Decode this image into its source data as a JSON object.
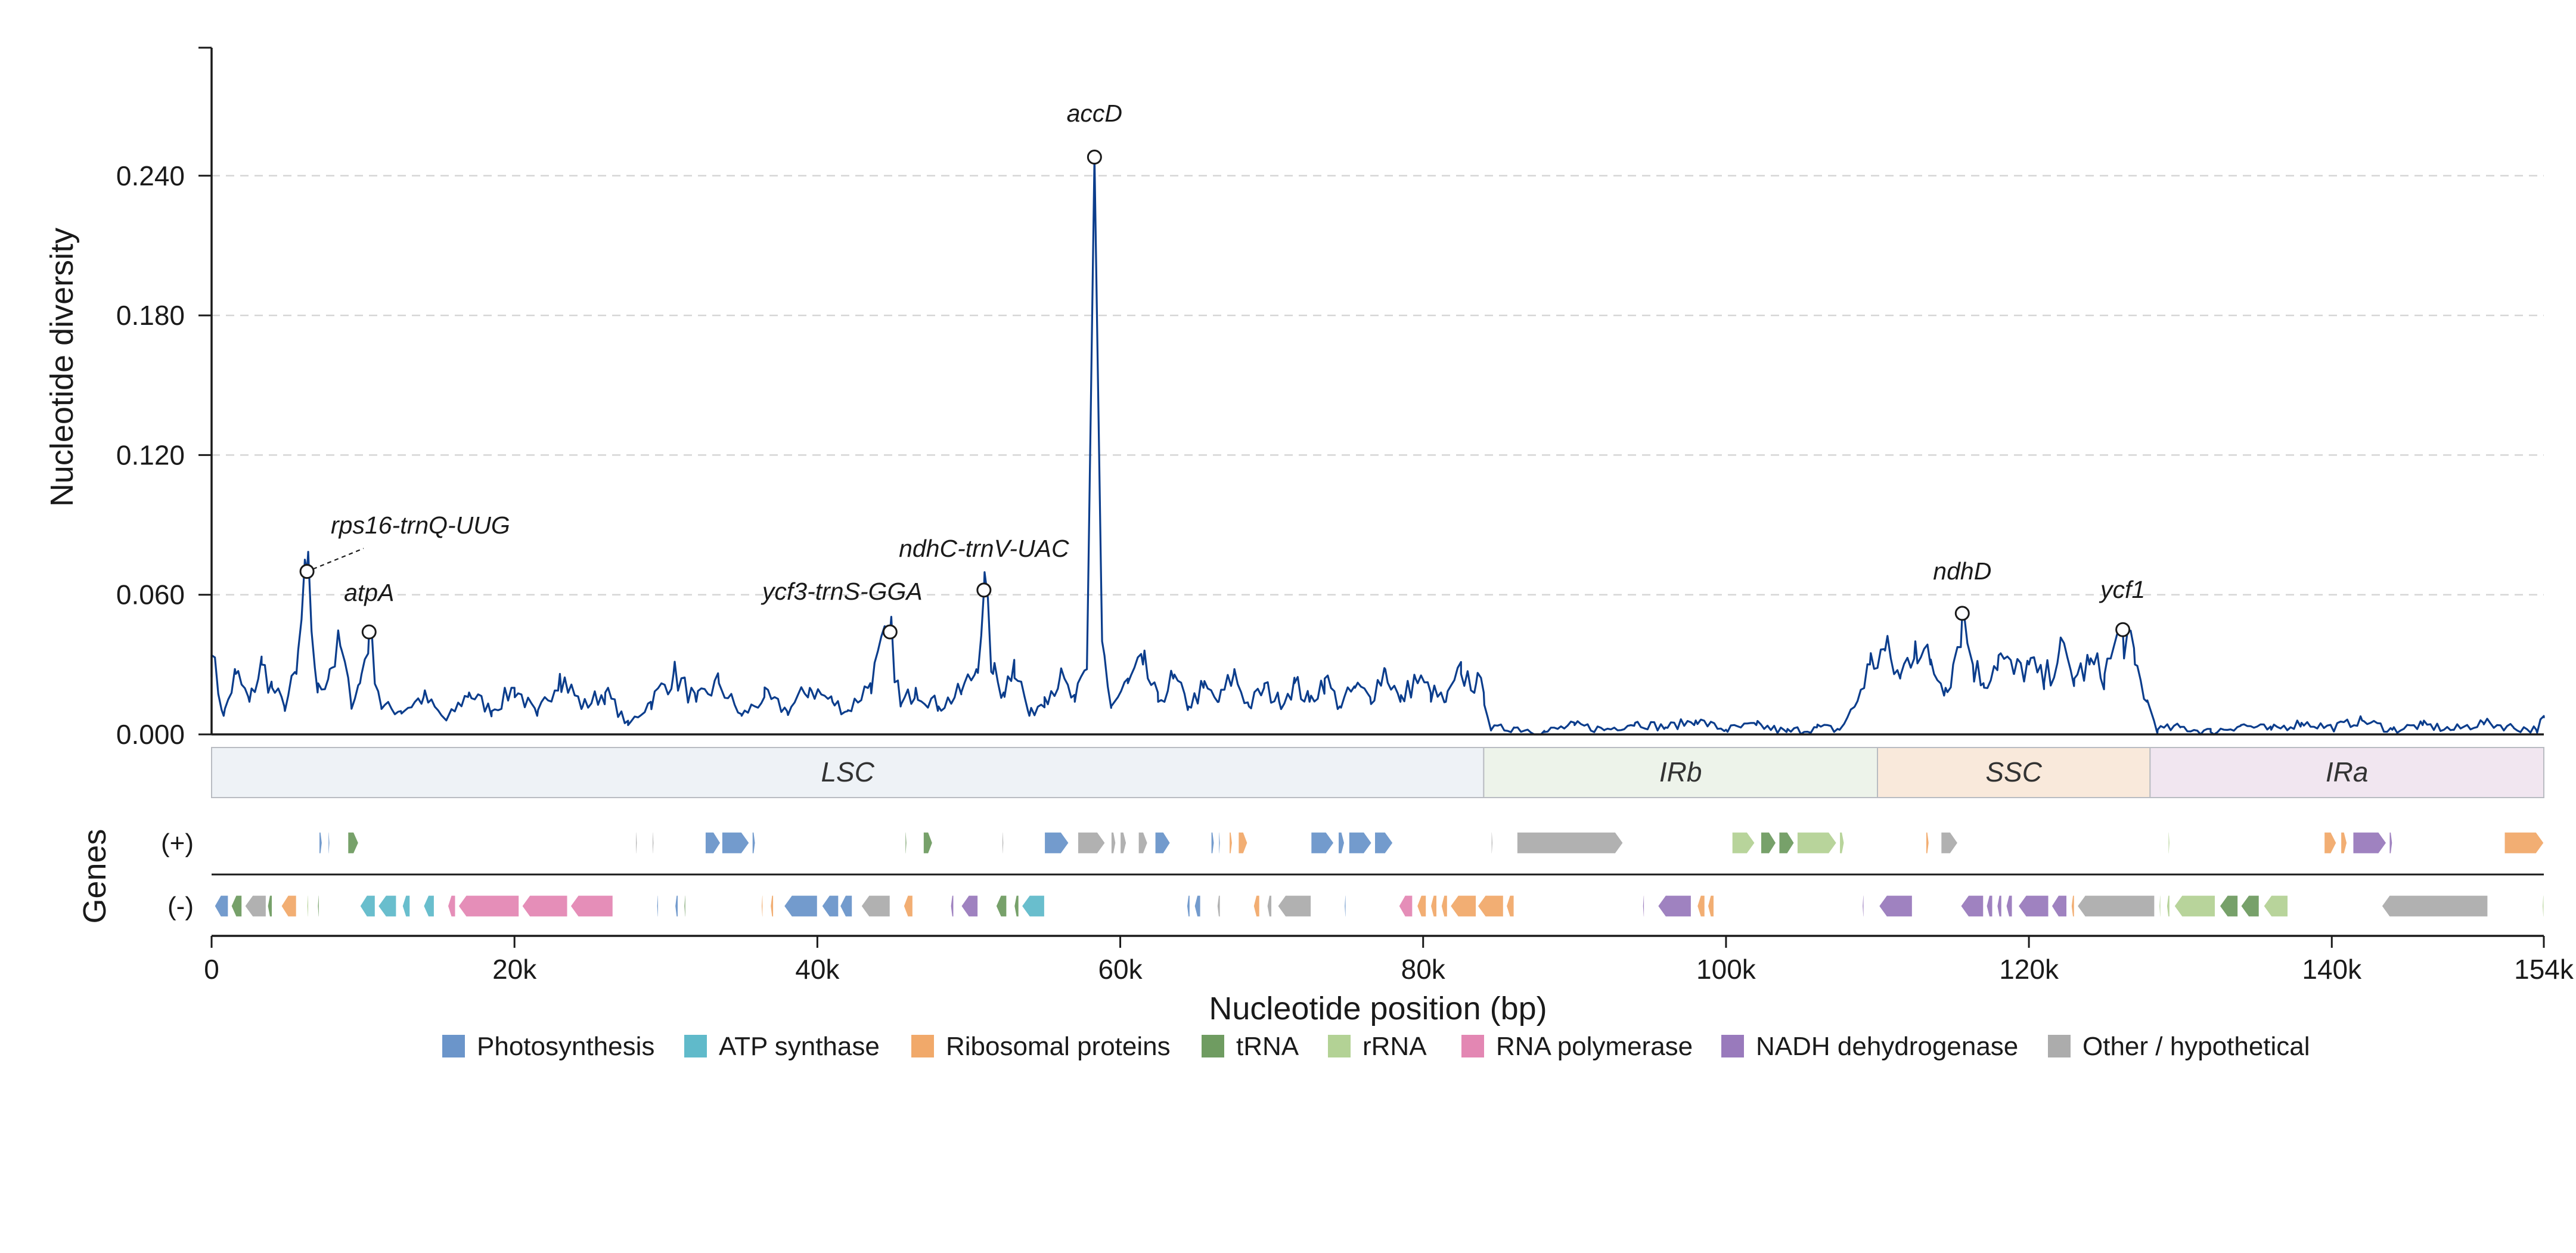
{
  "chart_data": {
    "type": "line",
    "ylabel": "Nucleotide diversity",
    "xlabel": "Nucleotide position (bp)",
    "genes_label": "Genes",
    "xlim": [
      0,
      154000
    ],
    "ylim": [
      0,
      0.295
    ],
    "y_ticks": [
      0.0,
      0.06,
      0.12,
      0.18,
      0.24
    ],
    "y_tick_labels": [
      "0.000",
      "0.060",
      "0.120",
      "0.180",
      "0.240"
    ],
    "x_ticks": [
      0,
      20000,
      40000,
      60000,
      80000,
      100000,
      120000,
      140000,
      154000
    ],
    "x_tick_labels": [
      "0",
      "20k",
      "40k",
      "60k",
      "80k",
      "100k",
      "120k",
      "140k",
      "154k"
    ],
    "grid": true,
    "line_color": "#0b3d8c",
    "series_anchors": [
      [
        0,
        0.034
      ],
      [
        800,
        0.008
      ],
      [
        1600,
        0.026
      ],
      [
        2500,
        0.014
      ],
      [
        3300,
        0.03
      ],
      [
        4000,
        0.02
      ],
      [
        4800,
        0.012
      ],
      [
        5600,
        0.026
      ],
      [
        6300,
        0.07
      ],
      [
        7000,
        0.018
      ],
      [
        7800,
        0.028
      ],
      [
        8500,
        0.038
      ],
      [
        9200,
        0.014
      ],
      [
        9800,
        0.022
      ],
      [
        10400,
        0.044
      ],
      [
        11200,
        0.012
      ],
      [
        12500,
        0.01
      ],
      [
        14000,
        0.016
      ],
      [
        15500,
        0.006
      ],
      [
        17000,
        0.018
      ],
      [
        18500,
        0.01
      ],
      [
        20000,
        0.02
      ],
      [
        21500,
        0.008
      ],
      [
        23000,
        0.026
      ],
      [
        24500,
        0.012
      ],
      [
        26000,
        0.018
      ],
      [
        27500,
        0.004
      ],
      [
        29000,
        0.014
      ],
      [
        30500,
        0.026
      ],
      [
        32000,
        0.014
      ],
      [
        33500,
        0.022
      ],
      [
        35000,
        0.008
      ],
      [
        36500,
        0.016
      ],
      [
        38000,
        0.01
      ],
      [
        39500,
        0.02
      ],
      [
        41000,
        0.014
      ],
      [
        42000,
        0.01
      ],
      [
        43500,
        0.022
      ],
      [
        44800,
        0.044
      ],
      [
        45500,
        0.012
      ],
      [
        46500,
        0.02
      ],
      [
        48000,
        0.012
      ],
      [
        49500,
        0.018
      ],
      [
        50500,
        0.028
      ],
      [
        51000,
        0.062
      ],
      [
        51600,
        0.026
      ],
      [
        52300,
        0.018
      ],
      [
        53000,
        0.032
      ],
      [
        54000,
        0.008
      ],
      [
        55000,
        0.016
      ],
      [
        56000,
        0.024
      ],
      [
        57000,
        0.014
      ],
      [
        57800,
        0.028
      ],
      [
        58300,
        0.248
      ],
      [
        58800,
        0.04
      ],
      [
        59400,
        0.012
      ],
      [
        60500,
        0.022
      ],
      [
        61500,
        0.03
      ],
      [
        62500,
        0.014
      ],
      [
        63500,
        0.024
      ],
      [
        64500,
        0.012
      ],
      [
        65500,
        0.02
      ],
      [
        66500,
        0.014
      ],
      [
        67500,
        0.026
      ],
      [
        68500,
        0.012
      ],
      [
        69500,
        0.02
      ],
      [
        70500,
        0.014
      ],
      [
        71500,
        0.022
      ],
      [
        72500,
        0.014
      ],
      [
        73500,
        0.024
      ],
      [
        74500,
        0.012
      ],
      [
        75500,
        0.02
      ],
      [
        76500,
        0.016
      ],
      [
        77500,
        0.028
      ],
      [
        78500,
        0.014
      ],
      [
        79500,
        0.024
      ],
      [
        80500,
        0.018
      ],
      [
        81500,
        0.014
      ],
      [
        82500,
        0.026
      ],
      [
        83500,
        0.022
      ],
      [
        84000,
        0.018
      ],
      [
        84500,
        0.002
      ],
      [
        86000,
        0.003
      ],
      [
        88000,
        0.001
      ],
      [
        90000,
        0.004
      ],
      [
        92000,
        0.002
      ],
      [
        94000,
        0.005
      ],
      [
        96000,
        0.003
      ],
      [
        98000,
        0.006
      ],
      [
        100000,
        0.002
      ],
      [
        102000,
        0.004
      ],
      [
        104000,
        0.001
      ],
      [
        106000,
        0.003
      ],
      [
        107500,
        0.002
      ],
      [
        108500,
        0.012
      ],
      [
        109500,
        0.03
      ],
      [
        110500,
        0.036
      ],
      [
        111500,
        0.024
      ],
      [
        112500,
        0.04
      ],
      [
        113500,
        0.03
      ],
      [
        114500,
        0.02
      ],
      [
        115000,
        0.03
      ],
      [
        115600,
        0.052
      ],
      [
        116300,
        0.03
      ],
      [
        117000,
        0.022
      ],
      [
        118000,
        0.034
      ],
      [
        119000,
        0.026
      ],
      [
        120000,
        0.03
      ],
      [
        121000,
        0.022
      ],
      [
        122000,
        0.036
      ],
      [
        123000,
        0.024
      ],
      [
        124000,
        0.03
      ],
      [
        125000,
        0.026
      ],
      [
        126200,
        0.045
      ],
      [
        127000,
        0.03
      ],
      [
        127800,
        0.014
      ],
      [
        128500,
        0.002
      ],
      [
        130000,
        0.003
      ],
      [
        132000,
        0.001
      ],
      [
        134000,
        0.004
      ],
      [
        136000,
        0.002
      ],
      [
        138000,
        0.005
      ],
      [
        140000,
        0.003
      ],
      [
        142000,
        0.006
      ],
      [
        144000,
        0.002
      ],
      [
        146000,
        0.004
      ],
      [
        148000,
        0.002
      ],
      [
        150000,
        0.005
      ],
      [
        152000,
        0.003
      ],
      [
        153500,
        0.002
      ],
      [
        154000,
        0.007
      ]
    ],
    "peaks": [
      {
        "label": "rps16-trnQ-UUG",
        "x": 6300,
        "y": 0.07,
        "leader": true
      },
      {
        "label": "atpA",
        "x": 10400,
        "y": 0.044,
        "leader": false
      },
      {
        "label": "ycf3-trnS-GGA",
        "x": 44800,
        "y": 0.044,
        "leader": false
      },
      {
        "label": "ndhC-trnV-UAC",
        "x": 51000,
        "y": 0.062,
        "leader": false
      },
      {
        "label": "accD",
        "x": 58300,
        "y": 0.248,
        "leader": false
      },
      {
        "label": "ndhD",
        "x": 115600,
        "y": 0.052,
        "leader": false
      },
      {
        "label": "ycf1",
        "x": 126200,
        "y": 0.045,
        "leader": false
      }
    ],
    "regions": [
      {
        "label": "LSC",
        "start": 0,
        "end": 84000,
        "color": "#eef2f6"
      },
      {
        "label": "IRb",
        "start": 84000,
        "end": 110000,
        "color": "#edf3ea"
      },
      {
        "label": "SSC",
        "start": 110000,
        "end": 128000,
        "color": "#f9e9db"
      },
      {
        "label": "IRa",
        "start": 128000,
        "end": 154000,
        "color": "#f1e6f0"
      }
    ],
    "strand_labels": [
      "(+)",
      "(-)"
    ],
    "gene_categories": [
      {
        "name": "Photosynthesis",
        "color": "#5b8ac4"
      },
      {
        "name": "ATP synthase",
        "color": "#4fb3c4"
      },
      {
        "name": "Ribosomal proteins",
        "color": "#f0a05a"
      },
      {
        "name": "tRNA",
        "color": "#5f9150"
      },
      {
        "name": "rRNA",
        "color": "#abcd8a"
      },
      {
        "name": "RNA polymerase",
        "color": "#e07aab"
      },
      {
        "name": "NADH dehydrogenase",
        "color": "#8e6cb5"
      },
      {
        "name": "Other / hypothetical",
        "color": "#a3a3a3"
      }
    ],
    "genes_plus": [
      [
        7100,
        7300,
        0
      ],
      [
        7700,
        7800,
        0
      ],
      [
        9000,
        9700,
        3
      ],
      [
        28000,
        28100,
        7
      ],
      [
        29100,
        29200,
        7
      ],
      [
        32600,
        33600,
        0
      ],
      [
        33700,
        35500,
        0
      ],
      [
        35700,
        35900,
        0
      ],
      [
        45800,
        45900,
        3
      ],
      [
        47000,
        47600,
        3
      ],
      [
        52200,
        52300,
        7
      ],
      [
        55000,
        56600,
        0
      ],
      [
        57200,
        59000,
        7
      ],
      [
        59400,
        59700,
        7
      ],
      [
        60000,
        60400,
        7
      ],
      [
        61200,
        61800,
        7
      ],
      [
        62300,
        63300,
        0
      ],
      [
        66000,
        66200,
        0
      ],
      [
        66500,
        66600,
        0
      ],
      [
        67200,
        67400,
        2
      ],
      [
        67800,
        68400,
        2
      ],
      [
        72600,
        74100,
        0
      ],
      [
        74400,
        74800,
        0
      ],
      [
        75100,
        76600,
        0
      ],
      [
        76800,
        78000,
        0
      ],
      [
        84500,
        84600,
        7
      ],
      [
        86200,
        93200,
        7
      ],
      [
        100400,
        101900,
        4
      ],
      [
        102300,
        103300,
        3
      ],
      [
        103500,
        104500,
        3
      ],
      [
        104700,
        107300,
        4
      ],
      [
        107500,
        107800,
        4
      ],
      [
        113200,
        113400,
        2
      ],
      [
        114200,
        115300,
        7
      ],
      [
        129200,
        129300,
        4
      ],
      [
        139500,
        140300,
        2
      ],
      [
        140600,
        141000,
        2
      ],
      [
        141400,
        143600,
        6
      ],
      [
        143800,
        144000,
        6
      ],
      [
        151400,
        154000,
        2
      ]
    ],
    "genes_minus": [
      [
        200,
        1100,
        0
      ],
      [
        1300,
        2000,
        3
      ],
      [
        2200,
        3600,
        7
      ],
      [
        3700,
        4000,
        3
      ],
      [
        4600,
        5600,
        2
      ],
      [
        6300,
        6400,
        4
      ],
      [
        7000,
        7100,
        3
      ],
      [
        9800,
        10800,
        1
      ],
      [
        11000,
        12200,
        1
      ],
      [
        12600,
        13100,
        1
      ],
      [
        14000,
        14700,
        1
      ],
      [
        15600,
        16100,
        5
      ],
      [
        16300,
        20300,
        5
      ],
      [
        20500,
        23500,
        5
      ],
      [
        23700,
        26500,
        5
      ],
      [
        29400,
        29500,
        0
      ],
      [
        30600,
        30800,
        0
      ],
      [
        31200,
        31300,
        3
      ],
      [
        36300,
        36400,
        2
      ],
      [
        36900,
        37100,
        2
      ],
      [
        37800,
        40000,
        0
      ],
      [
        40300,
        41400,
        0
      ],
      [
        41500,
        42300,
        0
      ],
      [
        42900,
        44800,
        7
      ],
      [
        45700,
        46300,
        2
      ],
      [
        48800,
        49000,
        6
      ],
      [
        49500,
        50600,
        6
      ],
      [
        51800,
        52500,
        3
      ],
      [
        53000,
        53300,
        3
      ],
      [
        53500,
        55000,
        1
      ],
      [
        64400,
        64600,
        0
      ],
      [
        64900,
        65300,
        0
      ],
      [
        66400,
        66600,
        7
      ],
      [
        68800,
        69200,
        2
      ],
      [
        69700,
        70000,
        7
      ],
      [
        70400,
        72600,
        7
      ],
      [
        74800,
        74900,
        0
      ],
      [
        78400,
        79300,
        5
      ],
      [
        79600,
        80200,
        2
      ],
      [
        80500,
        80900,
        2
      ],
      [
        81200,
        81600,
        2
      ],
      [
        81800,
        83500,
        2
      ],
      [
        83600,
        85300,
        2
      ],
      [
        85500,
        86000,
        2
      ],
      [
        94500,
        94600,
        6
      ],
      [
        95500,
        97700,
        6
      ],
      [
        98100,
        98600,
        2
      ],
      [
        98800,
        99200,
        2
      ],
      [
        109000,
        109100,
        6
      ],
      [
        110100,
        112300,
        6
      ],
      [
        115500,
        117000,
        6
      ],
      [
        117200,
        117600,
        6
      ],
      [
        117900,
        118200,
        6
      ],
      [
        118500,
        118900,
        6
      ],
      [
        119300,
        121300,
        6
      ],
      [
        121500,
        122500,
        6
      ],
      [
        122800,
        123000,
        2
      ],
      [
        123200,
        128300,
        7
      ],
      [
        128600,
        128700,
        4
      ],
      [
        129100,
        129300,
        4
      ],
      [
        129600,
        132300,
        4
      ],
      [
        132600,
        133800,
        3
      ],
      [
        134000,
        135200,
        3
      ],
      [
        135500,
        137100,
        4
      ],
      [
        143300,
        150300,
        7
      ],
      [
        153900,
        154000,
        4
      ]
    ]
  }
}
